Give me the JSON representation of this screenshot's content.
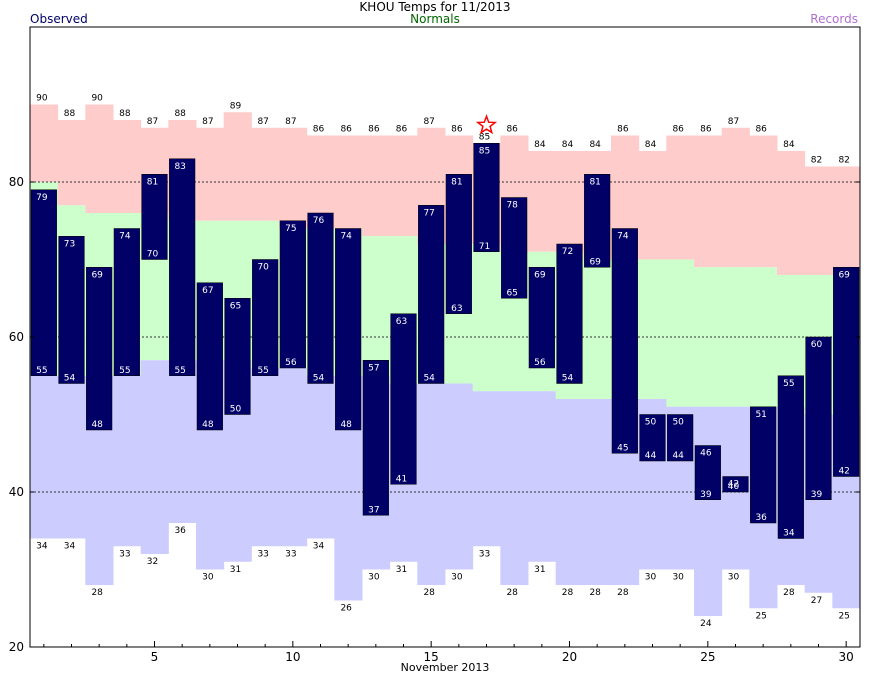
{
  "title": "KHOU Temps for 11/2013",
  "legend": {
    "observed": "Observed",
    "normals": "Normals",
    "records": "Records"
  },
  "colors": {
    "observed": "#000066",
    "normals_label": "#006600",
    "records_label": "#b070d0",
    "record_high_band": "#ffcccc",
    "normal_band": "#ccffcc",
    "record_low_band": "#ccccff",
    "star": "#ff0000"
  },
  "chart_data": {
    "type": "bar",
    "subtype": "floating-range",
    "xlabel": "November 2013",
    "ylabel": "",
    "xlim": [
      0.5,
      30.5
    ],
    "ylim": [
      20,
      100
    ],
    "y_ticks": [
      20,
      40,
      60,
      80
    ],
    "x_ticks": [
      5,
      10,
      15,
      20,
      25,
      30
    ],
    "grid": "dashed lines at 40, 60, 80",
    "days": [
      1,
      2,
      3,
      4,
      5,
      6,
      7,
      8,
      9,
      10,
      11,
      12,
      13,
      14,
      15,
      16,
      17,
      18,
      19,
      20,
      21,
      22,
      23,
      24,
      25,
      26,
      27,
      28,
      29,
      30
    ],
    "observed_high": [
      79,
      73,
      69,
      74,
      81,
      83,
      67,
      65,
      70,
      75,
      76,
      74,
      57,
      63,
      77,
      81,
      85,
      78,
      69,
      72,
      81,
      74,
      50,
      50,
      46,
      42,
      51,
      55,
      60,
      69
    ],
    "observed_low": [
      55,
      54,
      48,
      55,
      70,
      55,
      48,
      50,
      55,
      56,
      54,
      48,
      37,
      41,
      54,
      63,
      71,
      65,
      56,
      54,
      69,
      45,
      44,
      44,
      39,
      40,
      36,
      34,
      39,
      42
    ],
    "record_high": [
      90,
      88,
      90,
      88,
      87,
      88,
      87,
      89,
      87,
      87,
      86,
      86,
      86,
      86,
      87,
      86,
      85,
      86,
      84,
      84,
      84,
      86,
      84,
      86,
      86,
      87,
      86,
      84,
      82,
      82
    ],
    "record_low": [
      34,
      34,
      28,
      33,
      32,
      36,
      30,
      31,
      33,
      33,
      34,
      26,
      30,
      31,
      28,
      30,
      33,
      28,
      31,
      28,
      28,
      28,
      30,
      30,
      24,
      30,
      25,
      28,
      27,
      25
    ],
    "normal_high": [
      80,
      77,
      76,
      76,
      76,
      75,
      75,
      75,
      75,
      74,
      74,
      74,
      73,
      73,
      72,
      72,
      72,
      71,
      71,
      71,
      70,
      70,
      70,
      70,
      69,
      69,
      69,
      68,
      68,
      68
    ],
    "normal_low": [
      55,
      55,
      55,
      55,
      57,
      57,
      57,
      57,
      56,
      56,
      55,
      55,
      55,
      54,
      54,
      54,
      53,
      53,
      53,
      52,
      52,
      52,
      52,
      51,
      51,
      51,
      51,
      51,
      50,
      50
    ],
    "star_day": 17
  }
}
